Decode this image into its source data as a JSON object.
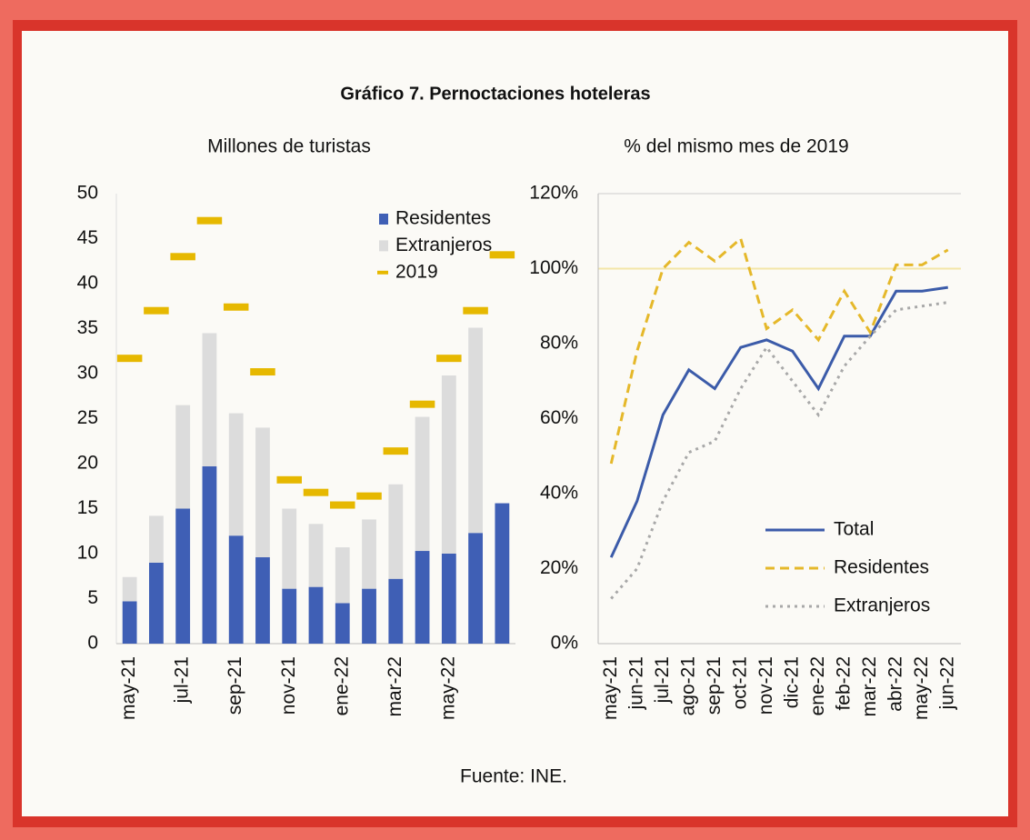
{
  "header": {
    "title": "Gráfico 7. Pernoctaciones hoteleras"
  },
  "source": "Fuente: INE.",
  "chart_data": [
    {
      "type": "bar",
      "stacked": true,
      "title": "Millones de turistas",
      "categories": [
        "may-21",
        null,
        "jul-21",
        null,
        "sep-21",
        null,
        "nov-21",
        null,
        "ene-22",
        null,
        "mar-22",
        null,
        "may-22",
        null,
        null
      ],
      "series": [
        {
          "name": "Residentes",
          "color": "#3f5fb5",
          "values": [
            4.7,
            9,
            15,
            19.7,
            12,
            9.6,
            6.1,
            6.3,
            4.5,
            6.1,
            7.2,
            10.3,
            10,
            12.3,
            15.6
          ]
        },
        {
          "name": "Extranjeros",
          "color": "#dcdcdc",
          "values": [
            2.7,
            5.2,
            11.5,
            14.8,
            13.6,
            14.4,
            8.9,
            7.0,
            6.2,
            7.7,
            10.5,
            14.9,
            19.8,
            22.8,
            null
          ]
        },
        {
          "name": "2019",
          "type": "marker",
          "color": "#e6b800",
          "values": [
            31.7,
            37,
            43,
            47,
            37.4,
            30.2,
            18.2,
            16.8,
            15.4,
            16.4,
            21.4,
            26.6,
            31.7,
            37,
            43.2
          ]
        }
      ],
      "ylim": [
        0,
        50
      ],
      "yticks": [
        0,
        5,
        10,
        15,
        20,
        25,
        30,
        35,
        40,
        45,
        50
      ],
      "legend": "upper right"
    },
    {
      "type": "line",
      "title": "% del mismo mes de 2019",
      "categories": [
        "may-21",
        "jun-21",
        "jul-21",
        "ago-21",
        "sep-21",
        "oct-21",
        "nov-21",
        "dic-21",
        "ene-22",
        "feb-22",
        "mar-22",
        "abr-22",
        "may-22",
        "jun-22"
      ],
      "series": [
        {
          "name": "Total",
          "color": "#3b5ba9",
          "dash": "none",
          "values": [
            23,
            38,
            61,
            73,
            68,
            79,
            81,
            78,
            68,
            82,
            82,
            94,
            94,
            95
          ]
        },
        {
          "name": "Residentes",
          "color": "#e5b82a",
          "dash": "10,6",
          "values": [
            48,
            78,
            100,
            107,
            102,
            108,
            84,
            89,
            81,
            94,
            83,
            101,
            101,
            105
          ]
        },
        {
          "name": "Extranjeros",
          "color": "#a8a8a8",
          "dash": "3,5",
          "values": [
            12,
            20,
            38,
            51,
            54,
            68,
            79,
            70,
            61,
            74,
            82,
            89,
            90,
            91
          ]
        }
      ],
      "reference_line": 100,
      "ylim": [
        0,
        120
      ],
      "yticks": [
        {
          "value": 0,
          "label": "0%"
        },
        {
          "value": 20,
          "label": "20%"
        },
        {
          "value": 40,
          "label": "40%"
        },
        {
          "value": 60,
          "label": "60%"
        },
        {
          "value": 80,
          "label": "80%"
        },
        {
          "value": 100,
          "label": "100%"
        },
        {
          "value": 120,
          "label": "120%"
        }
      ],
      "legend": "lower right"
    }
  ]
}
